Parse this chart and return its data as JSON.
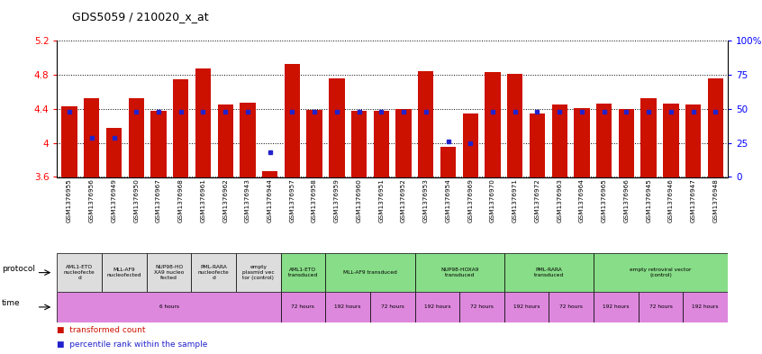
{
  "title": "GDS5059 / 210020_x_at",
  "samples": [
    "GSM1376955",
    "GSM1376956",
    "GSM1376949",
    "GSM1376950",
    "GSM1376967",
    "GSM1376968",
    "GSM1376961",
    "GSM1376962",
    "GSM1376943",
    "GSM1376944",
    "GSM1376957",
    "GSM1376958",
    "GSM1376959",
    "GSM1376960",
    "GSM1376951",
    "GSM1376952",
    "GSM1376953",
    "GSM1376954",
    "GSM1376969",
    "GSM1376970",
    "GSM1376971",
    "GSM1376972",
    "GSM1376963",
    "GSM1376964",
    "GSM1376965",
    "GSM1376966",
    "GSM1376945",
    "GSM1376946",
    "GSM1376947",
    "GSM1376948"
  ],
  "bar_values": [
    4.43,
    4.52,
    4.18,
    4.52,
    4.38,
    4.75,
    4.87,
    4.45,
    4.47,
    3.67,
    4.93,
    4.39,
    4.76,
    4.38,
    4.38,
    4.4,
    4.84,
    3.95,
    4.35,
    4.83,
    4.81,
    4.35,
    4.45,
    4.41,
    4.46,
    4.4,
    4.52,
    4.46,
    4.45,
    4.76
  ],
  "percentile_values": [
    48,
    29,
    29,
    48,
    48,
    48,
    48,
    48,
    48,
    18,
    48,
    48,
    48,
    48,
    48,
    48,
    48,
    26,
    25,
    48,
    48,
    48,
    48,
    48,
    48,
    48,
    48,
    48,
    48,
    48
  ],
  "ymin": 3.6,
  "ymax": 5.2,
  "yticks": [
    3.6,
    4.0,
    4.4,
    4.8,
    5.2
  ],
  "ytick_labels": [
    "3.6",
    "4",
    "4.4",
    "4.8",
    "5.2"
  ],
  "right_yticks": [
    0,
    25,
    50,
    75,
    100
  ],
  "right_ytick_labels": [
    "0",
    "25",
    "50",
    "75",
    "100%"
  ],
  "bar_color": "#cc1100",
  "dot_color": "#2222cc",
  "protocol_row": [
    {
      "label": "AML1-ETO\nnucleofecte\nd",
      "start": 0,
      "end": 2,
      "color": "#dddddd"
    },
    {
      "label": "MLL-AF9\nnucleofected",
      "start": 2,
      "end": 4,
      "color": "#dddddd"
    },
    {
      "label": "NUP98-HO\nXA9 nucleo\nfected",
      "start": 4,
      "end": 6,
      "color": "#dddddd"
    },
    {
      "label": "PML-RARA\nnucleofecte\nd",
      "start": 6,
      "end": 8,
      "color": "#dddddd"
    },
    {
      "label": "empty\nplasmid vec\ntor (control)",
      "start": 8,
      "end": 10,
      "color": "#dddddd"
    },
    {
      "label": "AML1-ETO\ntransduced",
      "start": 10,
      "end": 12,
      "color": "#88dd88"
    },
    {
      "label": "MLL-AF9 transduced",
      "start": 12,
      "end": 16,
      "color": "#88dd88"
    },
    {
      "label": "NUP98-HOXA9\ntransduced",
      "start": 16,
      "end": 20,
      "color": "#88dd88"
    },
    {
      "label": "PML-RARA\ntransduced",
      "start": 20,
      "end": 24,
      "color": "#88dd88"
    },
    {
      "label": "empty retroviral vector\n(control)",
      "start": 24,
      "end": 30,
      "color": "#88dd88"
    }
  ],
  "time_row": [
    {
      "label": "6 hours",
      "start": 0,
      "end": 10,
      "color": "#dd88dd"
    },
    {
      "label": "72 hours",
      "start": 10,
      "end": 12,
      "color": "#dd88dd"
    },
    {
      "label": "192 hours",
      "start": 12,
      "end": 14,
      "color": "#dd88dd"
    },
    {
      "label": "72 hours",
      "start": 14,
      "end": 16,
      "color": "#dd88dd"
    },
    {
      "label": "192 hours",
      "start": 16,
      "end": 18,
      "color": "#dd88dd"
    },
    {
      "label": "72 hours",
      "start": 18,
      "end": 20,
      "color": "#dd88dd"
    },
    {
      "label": "192 hours",
      "start": 20,
      "end": 22,
      "color": "#dd88dd"
    },
    {
      "label": "72 hours",
      "start": 22,
      "end": 24,
      "color": "#dd88dd"
    },
    {
      "label": "192 hours",
      "start": 24,
      "end": 26,
      "color": "#dd88dd"
    },
    {
      "label": "72 hours",
      "start": 26,
      "end": 28,
      "color": "#dd88dd"
    },
    {
      "label": "192 hours",
      "start": 28,
      "end": 30,
      "color": "#dd88dd"
    }
  ]
}
